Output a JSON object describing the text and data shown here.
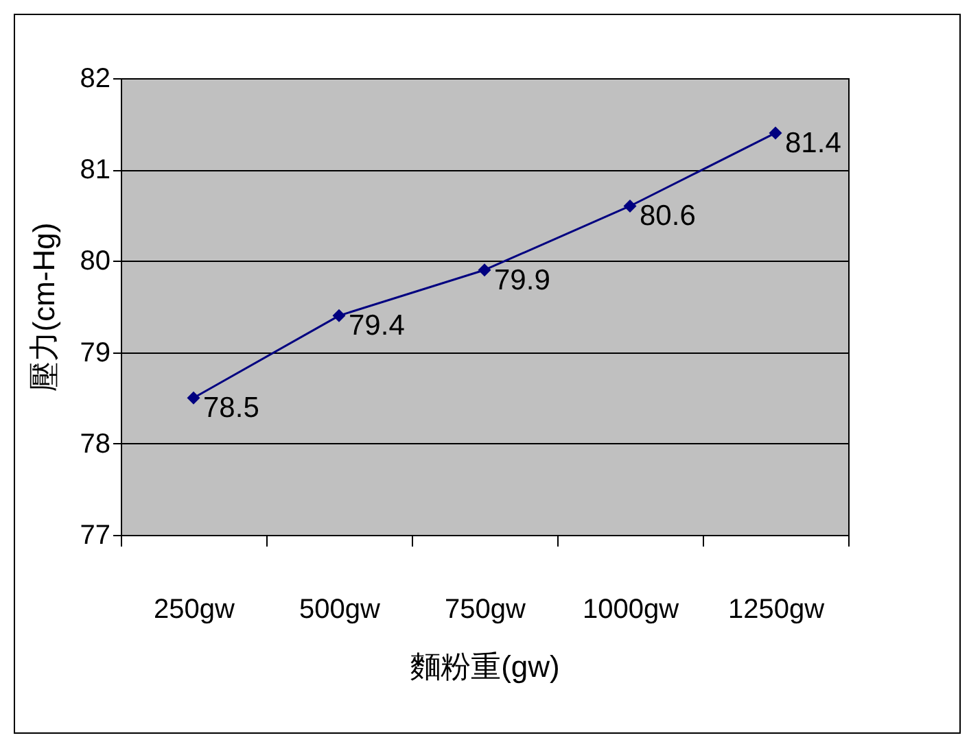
{
  "chart_data": {
    "type": "line",
    "xlabel": "麵粉重(gw)",
    "ylabel": "壓力(cm-Hg)",
    "categories": [
      "250gw",
      "500gw",
      "750gw",
      "1000gw",
      "1250gw"
    ],
    "series": [
      {
        "color": "#000080",
        "values": [
          78.5,
          79.4,
          79.9,
          80.6,
          81.4
        ]
      }
    ],
    "ylim": [
      77,
      82
    ],
    "yticks": [
      77,
      78,
      79,
      80,
      81,
      82
    ],
    "grid": "y",
    "marker": "diamond",
    "line_style": "solid",
    "data_labels": true
  }
}
